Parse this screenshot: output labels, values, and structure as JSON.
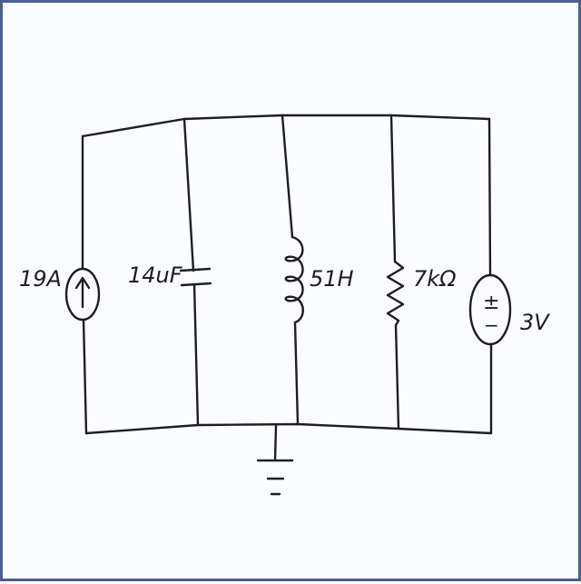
{
  "diagram": {
    "type": "circuit-schematic",
    "components": [
      {
        "id": "current-source",
        "kind": "current source",
        "label": "19A"
      },
      {
        "id": "capacitor",
        "kind": "capacitor",
        "label": "14uF"
      },
      {
        "id": "inductor",
        "kind": "inductor",
        "label": "51H"
      },
      {
        "id": "resistor",
        "kind": "resistor",
        "label": "7kΩ"
      },
      {
        "id": "voltage-source",
        "kind": "voltage source",
        "label": "3V"
      }
    ],
    "voltage_source_signs": {
      "plus": "±",
      "minus": "−"
    },
    "ground": {
      "kind": "ground"
    }
  }
}
